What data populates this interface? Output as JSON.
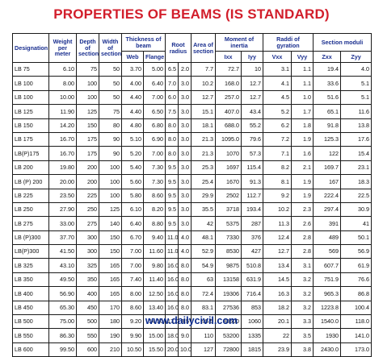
{
  "title": "PROPERTIES OF BEAMS (IS STANDARD)",
  "footer": "www.dailycivil.com",
  "colors": {
    "title": "#d21e2b",
    "header_text": "#1a2f8f",
    "footer": "#0a2a8c",
    "grid": "#1a1a1a"
  },
  "headers": {
    "designation": "Designation",
    "weight": "Weight per meter",
    "depth": "Depth of section",
    "width": "Width of section",
    "thickness": "Thickness of beam",
    "web": "Web",
    "flange": "Flange",
    "root_radius": "Root radius",
    "area": "Area of section",
    "moment": "Moment of inertia",
    "ixx": "Ixx",
    "iyy": "Iyy",
    "gyration": "Raddi of gyration",
    "vxx": "Vxx",
    "vyy": "Vyy",
    "moduli": "Section moduli",
    "zxx": "Zxx",
    "zyy": "Zyy"
  },
  "rows": [
    [
      "LB 75",
      "6.10",
      "75",
      "50",
      "3.70",
      "5.00",
      "6.5",
      "2.0",
      "7.7",
      "72.7",
      "10",
      "3.1",
      "1.1",
      "19.4",
      "4.0"
    ],
    [
      "LB 100",
      "8.00",
      "100",
      "50",
      "4.00",
      "6.40",
      "7.0",
      "3.0",
      "10.2",
      "168.0",
      "12.7",
      "4.1",
      "1.1",
      "33.6",
      "5.1"
    ],
    [
      "LB 100",
      "10.00",
      "100",
      "50",
      "4.40",
      "7.00",
      "6.0",
      "3.0",
      "12.7",
      "257.0",
      "12.7",
      "4.5",
      "1.0",
      "51.6",
      "5.1"
    ],
    [
      "LB 125",
      "11.90",
      "125",
      "75",
      "4.40",
      "6.50",
      "7.5",
      "3.0",
      "15.1",
      "407.0",
      "43.4",
      "5.2",
      "1.7",
      "65.1",
      "11.6"
    ],
    [
      "LB 150",
      "14.20",
      "150",
      "80",
      "4.80",
      "6.80",
      "8.0",
      "3.0",
      "18.1",
      "688.0",
      "55.2",
      "6.2",
      "1.8",
      "91.8",
      "13.8"
    ],
    [
      "LB 175",
      "16.70",
      "175",
      "90",
      "5.10",
      "6.90",
      "8.0",
      "3.0",
      "21.3",
      "1095.0",
      "79.6",
      "7.2",
      "1.9",
      "125.3",
      "17.6"
    ],
    [
      "LB(P)175",
      "16.70",
      "175",
      "90",
      "5.20",
      "7.00",
      "8.0",
      "3.0",
      "21.3",
      "1070",
      "57.3",
      "7.1",
      "1.6",
      "122",
      "15.4"
    ],
    [
      "LB 200",
      "19.80",
      "200",
      "100",
      "5.40",
      "7.30",
      "9.5",
      "3.0",
      "25.3",
      "1697",
      "115.4",
      "8.2",
      "2.1",
      "169.7",
      "23.1"
    ],
    [
      "LB (P) 200",
      "20.00",
      "200",
      "100",
      "5.60",
      "7.30",
      "9.5",
      "3.0",
      "25.4",
      "1670",
      "91.3",
      "8.1",
      "1.9",
      "167",
      "18.3"
    ],
    [
      "LB 225",
      "23.50",
      "225",
      "100",
      "5.80",
      "8.60",
      "9.5",
      "3.0",
      "29.9",
      "2502",
      "112.7",
      "9.2",
      "1.9",
      "222.4",
      "22.5"
    ],
    [
      "LB 250",
      "27.90",
      "250",
      "125",
      "6.10",
      "8.20",
      "9.5",
      "3.0",
      "35.5",
      "3718",
      "193.4",
      "10.2",
      "2.3",
      "297.4",
      "30.9"
    ],
    [
      "LB 275",
      "33.00",
      "275",
      "140",
      "6.40",
      "8.80",
      "9.5",
      "3.0",
      "42",
      "5375",
      "287",
      "11.3",
      "2.6",
      "391",
      "41"
    ],
    [
      "LB (P)300",
      "37.70",
      "300",
      "150",
      "6.70",
      "9.40",
      "11.0",
      "4.0",
      "48.1",
      "7330",
      "376",
      "12.4",
      "2.8",
      "489",
      "50.1"
    ],
    [
      "LB(P)300",
      "41.50",
      "300",
      "150",
      "7.00",
      "11.60",
      "11.0",
      "4.0",
      "52.9",
      "8530",
      "427",
      "12.7",
      "2.8",
      "569",
      "56.9"
    ],
    [
      "LB 325",
      "43.10",
      "325",
      "165",
      "7.00",
      "9.80",
      "16.0",
      "8.0",
      "54.9",
      "9875",
      "510.8",
      "13.4",
      "3.1",
      "607.7",
      "61.9"
    ],
    [
      "LB 350",
      "49.50",
      "350",
      "165",
      "7.40",
      "11.40",
      "16.0",
      "8.0",
      "63",
      "13158",
      "631.9",
      "14.5",
      "3.2",
      "751.9",
      "76.6"
    ],
    [
      "LB 400",
      "56.90",
      "400",
      "165",
      "8.00",
      "12.50",
      "16.0",
      "8.0",
      "72.4",
      "19306",
      "716.4",
      "16.3",
      "3.2",
      "965.3",
      "86.8"
    ],
    [
      "LB 450",
      "65.30",
      "450",
      "170",
      "8.60",
      "13.40",
      "16.0",
      "8.0",
      "83.1",
      "27536",
      "853",
      "18.2",
      "3.2",
      "1223.8",
      "100.4"
    ],
    [
      "LB 500",
      "75.00",
      "500",
      "180",
      "9.20",
      "14.10",
      "17.0",
      "8.5",
      "95.5",
      "38600",
      "1060",
      "20.1",
      "3.3",
      "1540.0",
      "118.0"
    ],
    [
      "LB 550",
      "86.30",
      "550",
      "190",
      "9.90",
      "15.00",
      "18.0",
      "9.0",
      "110",
      "53200",
      "1335",
      "22",
      "3.5",
      "1930",
      "141.0"
    ],
    [
      "LB 600",
      "99.50",
      "600",
      "210",
      "10.50",
      "15.50",
      "20.0",
      "10.0",
      "127",
      "72800",
      "1815",
      "23.9",
      "3.8",
      "2430.0",
      "173.0"
    ]
  ]
}
